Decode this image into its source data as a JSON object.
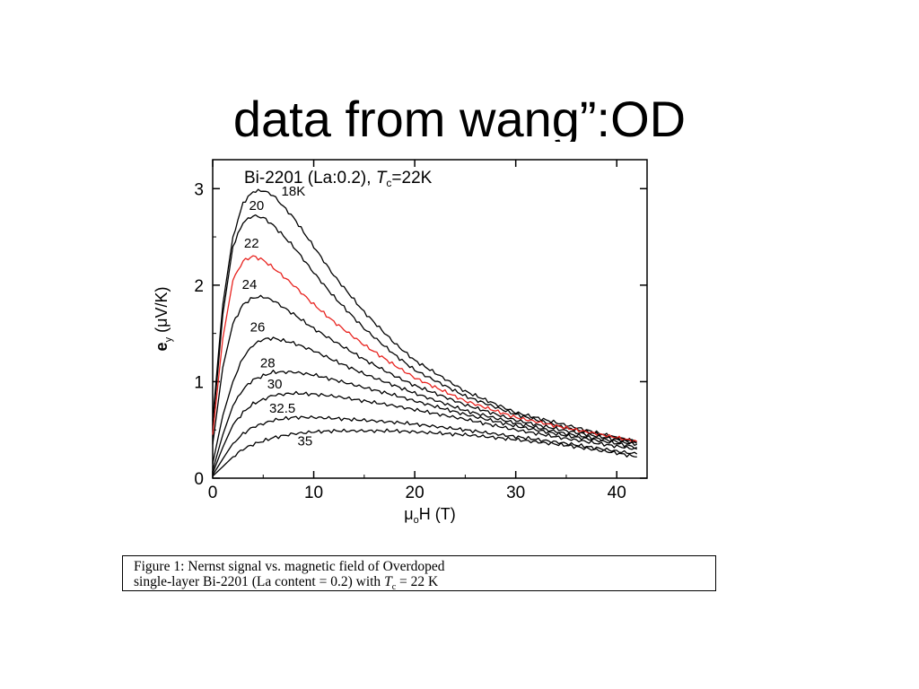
{
  "slide": {
    "title": "data from wang”:OD"
  },
  "caption": {
    "line1": "Figure 1: Nernst signal vs. magnetic field of Overdoped",
    "line2_prefix": "single-layer Bi-2201 (La content = 0.2) with ",
    "line2_var": "T",
    "line2_sub": "c",
    "line2_suffix": " = 22 K"
  },
  "chart_data": {
    "type": "line",
    "title_prefix": "Bi-2201 (La:0.2), ",
    "title_var": "T",
    "title_sub": "c",
    "title_suffix": "=22K",
    "xlabel_main": "μ",
    "xlabel_sub": "o",
    "xlabel_rest": "H (T)",
    "ylabel_main": "e",
    "ylabel_sub": "y",
    "ylabel_rest": " (μV/K)",
    "xlim": [
      0,
      43
    ],
    "ylim": [
      0,
      3.3
    ],
    "xticks": [
      0,
      10,
      20,
      30,
      40
    ],
    "yticks": [
      0,
      1,
      2,
      3
    ],
    "highlight_color": "#e8231f",
    "line_color": "#000000",
    "series": [
      {
        "name": "18K",
        "highlight": false,
        "x": [
          0,
          0.5,
          1,
          2,
          3,
          4,
          5,
          6,
          8,
          10,
          12,
          15,
          18,
          20,
          25,
          30,
          35,
          40,
          42
        ],
        "y": [
          0.6,
          1.2,
          1.8,
          2.5,
          2.85,
          2.97,
          2.98,
          2.93,
          2.7,
          2.4,
          2.1,
          1.72,
          1.4,
          1.22,
          0.9,
          0.68,
          0.55,
          0.42,
          0.38
        ]
      },
      {
        "name": "20",
        "highlight": false,
        "x": [
          0,
          0.5,
          1,
          2,
          3,
          4,
          5,
          6,
          8,
          10,
          12,
          15,
          18,
          20,
          25,
          30,
          35,
          40,
          42
        ],
        "y": [
          0.55,
          1.1,
          1.7,
          2.4,
          2.65,
          2.72,
          2.7,
          2.62,
          2.4,
          2.13,
          1.88,
          1.55,
          1.28,
          1.12,
          0.85,
          0.66,
          0.52,
          0.42,
          0.38
        ]
      },
      {
        "name": "22",
        "highlight": true,
        "x": [
          0,
          0.5,
          1,
          2,
          3,
          4,
          5,
          6,
          8,
          10,
          12,
          15,
          18,
          20,
          25,
          30,
          35,
          40,
          42
        ],
        "y": [
          0.45,
          0.95,
          1.45,
          2.05,
          2.25,
          2.3,
          2.26,
          2.18,
          2.0,
          1.8,
          1.62,
          1.38,
          1.17,
          1.04,
          0.8,
          0.63,
          0.52,
          0.42,
          0.38
        ]
      },
      {
        "name": "24",
        "highlight": false,
        "x": [
          0,
          0.5,
          1,
          2,
          3,
          4,
          5,
          6,
          8,
          10,
          12,
          15,
          18,
          20,
          25,
          30,
          35,
          40,
          42
        ],
        "y": [
          0.35,
          0.75,
          1.15,
          1.6,
          1.8,
          1.87,
          1.88,
          1.84,
          1.7,
          1.55,
          1.42,
          1.23,
          1.06,
          0.96,
          0.76,
          0.6,
          0.49,
          0.4,
          0.36
        ]
      },
      {
        "name": "26",
        "highlight": false,
        "x": [
          0,
          1,
          2,
          3,
          4,
          5,
          6,
          8,
          10,
          12,
          15,
          18,
          20,
          25,
          30,
          35,
          40,
          42
        ],
        "y": [
          0.15,
          0.65,
          1.0,
          1.25,
          1.38,
          1.44,
          1.45,
          1.4,
          1.32,
          1.22,
          1.08,
          0.96,
          0.88,
          0.7,
          0.57,
          0.46,
          0.38,
          0.35
        ]
      },
      {
        "name": "28",
        "highlight": false,
        "x": [
          0,
          1,
          2,
          3,
          4,
          6,
          8,
          10,
          12,
          15,
          18,
          20,
          25,
          30,
          35,
          40,
          42
        ],
        "y": [
          0.08,
          0.45,
          0.75,
          0.92,
          1.02,
          1.1,
          1.1,
          1.07,
          1.02,
          0.94,
          0.86,
          0.8,
          0.66,
          0.54,
          0.44,
          0.36,
          0.32
        ]
      },
      {
        "name": "30",
        "highlight": false,
        "x": [
          0,
          1,
          2,
          3,
          4,
          6,
          8,
          10,
          12,
          15,
          18,
          20,
          25,
          30,
          35,
          40,
          42
        ],
        "y": [
          0.05,
          0.32,
          0.55,
          0.68,
          0.77,
          0.86,
          0.88,
          0.87,
          0.85,
          0.8,
          0.75,
          0.71,
          0.61,
          0.5,
          0.41,
          0.33,
          0.3
        ]
      },
      {
        "name": "32.5",
        "highlight": false,
        "x": [
          0,
          1,
          2,
          3,
          4,
          6,
          8,
          10,
          12,
          15,
          18,
          20,
          25,
          30,
          35,
          40,
          42
        ],
        "y": [
          0.03,
          0.2,
          0.36,
          0.46,
          0.53,
          0.6,
          0.63,
          0.63,
          0.62,
          0.6,
          0.58,
          0.56,
          0.5,
          0.43,
          0.36,
          0.28,
          0.25
        ]
      },
      {
        "name": "35",
        "highlight": false,
        "x": [
          0,
          1,
          2,
          3,
          4,
          6,
          8,
          10,
          12,
          15,
          18,
          20,
          25,
          30,
          35,
          40,
          42
        ],
        "y": [
          0.02,
          0.12,
          0.22,
          0.3,
          0.35,
          0.42,
          0.46,
          0.48,
          0.49,
          0.49,
          0.49,
          0.48,
          0.45,
          0.4,
          0.34,
          0.26,
          0.22
        ]
      }
    ],
    "label_positions": [
      {
        "text": "18K",
        "x": 6.8,
        "y": 2.93
      },
      {
        "text": "20",
        "x": 3.6,
        "y": 2.78
      },
      {
        "text": "22",
        "x": 3.1,
        "y": 2.39
      },
      {
        "text": "24",
        "x": 2.9,
        "y": 1.96
      },
      {
        "text": "26",
        "x": 3.7,
        "y": 1.52
      },
      {
        "text": "28",
        "x": 4.7,
        "y": 1.15
      },
      {
        "text": "30",
        "x": 5.4,
        "y": 0.93
      },
      {
        "text": "32.5",
        "x": 5.6,
        "y": 0.68
      },
      {
        "text": "35",
        "x": 8.4,
        "y": 0.34
      }
    ]
  }
}
